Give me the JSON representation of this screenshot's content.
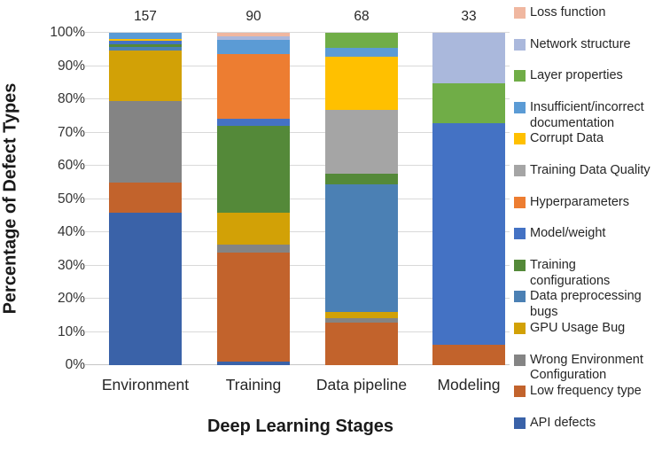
{
  "chart_data": {
    "type": "bar",
    "stacked": true,
    "normalized": "percent",
    "title": "",
    "xlabel": "Deep Learning Stages",
    "ylabel": "Percentage of Defect Types",
    "ylim": [
      0,
      100
    ],
    "grid": true,
    "legend_position": "right",
    "y_tick_labels": [
      "0%",
      "10%",
      "20%",
      "30%",
      "40%",
      "50%",
      "60%",
      "70%",
      "80%",
      "90%",
      "100%"
    ],
    "categories": [
      "Environment",
      "Training",
      "Data pipeline",
      "Modeling"
    ],
    "totals": [
      "157",
      "90",
      "68",
      "33"
    ],
    "series": [
      {
        "name": "API defects",
        "color": "#3a62a8",
        "values": [
          46.0,
          1.1,
          0,
          0
        ]
      },
      {
        "name": "Low frequency type",
        "color": "#c2632c",
        "values": [
          9.0,
          32.8,
          12.8,
          6.1
        ]
      },
      {
        "name": "Wrong Environment Configuration",
        "color": "#848484",
        "values": [
          24.5,
          2.5,
          1.3,
          0
        ]
      },
      {
        "name": "GPU Usage Bug",
        "color": "#d2a106",
        "values": [
          15.3,
          9.4,
          2.0,
          0
        ]
      },
      {
        "name": "Data preprocessing bugs",
        "color": "#4b80b4",
        "values": [
          1.0,
          0,
          38.4,
          0
        ]
      },
      {
        "name": "Training configurations",
        "color": "#548939",
        "values": [
          0.7,
          26.2,
          3.2,
          0
        ]
      },
      {
        "name": "Model/weight",
        "color": "#4472c4",
        "values": [
          1.0,
          2.2,
          0,
          66.6
        ]
      },
      {
        "name": "Hyperparameters",
        "color": "#ed7d31",
        "values": [
          0,
          19.4,
          0,
          0
        ]
      },
      {
        "name": "Training Data Quality",
        "color": "#a5a5a5",
        "values": [
          0,
          0,
          19.0,
          0
        ]
      },
      {
        "name": "Corrupt Data",
        "color": "#ffc000",
        "values": [
          0.7,
          0,
          16.0,
          0
        ]
      },
      {
        "name": "Insufficient/incorrect documentation",
        "color": "#5b9bd5",
        "values": [
          1.8,
          4.3,
          2.9,
          0
        ]
      },
      {
        "name": "Layer properties",
        "color": "#70ad47",
        "values": [
          0,
          0,
          4.4,
          12.1
        ]
      },
      {
        "name": "Network structure",
        "color": "#aab8dc",
        "values": [
          0,
          1.0,
          0,
          15.2
        ]
      },
      {
        "name": "Loss function",
        "color": "#f0b7a0",
        "values": [
          0,
          1.1,
          0,
          0
        ]
      }
    ]
  }
}
